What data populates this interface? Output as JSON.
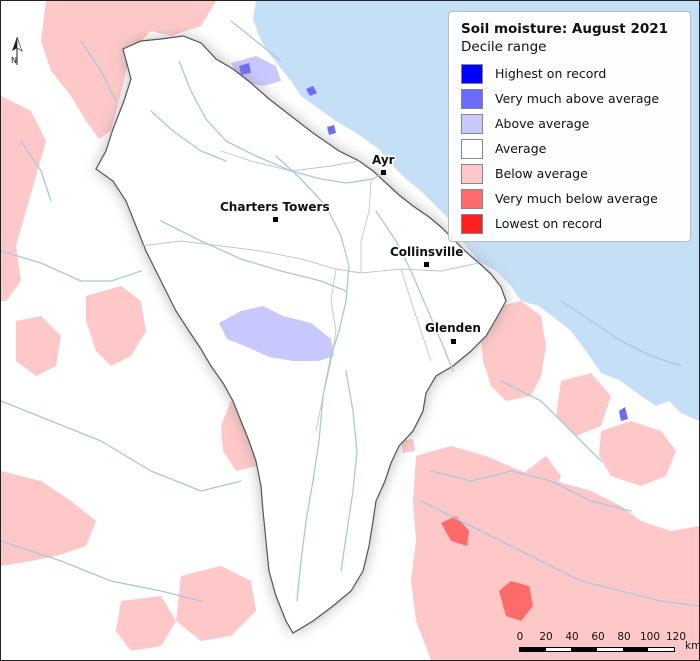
{
  "legend": {
    "title": "Soil moisture: August 2021",
    "subtitle": "Decile range",
    "items": [
      {
        "label": "Highest on record",
        "color": "#0000ff"
      },
      {
        "label": "Very much above average",
        "color": "#6b6bff"
      },
      {
        "label": "Above average",
        "color": "#c8c8ff"
      },
      {
        "label": "Average",
        "color": "#ffffff"
      },
      {
        "label": "Below average",
        "color": "#ffc8c8"
      },
      {
        "label": "Very much below average",
        "color": "#ff6b6b"
      },
      {
        "label": "Lowest on record",
        "color": "#ff1f1f"
      }
    ]
  },
  "towns": [
    {
      "name": "Ayr"
    },
    {
      "name": "Charters Towers"
    },
    {
      "name": "Collinsville"
    },
    {
      "name": "Glenden"
    }
  ],
  "north_arrow": {
    "label": "N",
    "icon": "north-arrow-icon"
  },
  "scale_bar": {
    "ticks": [
      "0",
      "20",
      "40",
      "60",
      "80",
      "100",
      "120"
    ],
    "unit": "km"
  },
  "colors": {
    "sea": "#c5dff6",
    "river": "#a9c7de",
    "basin_outline": "#555555"
  }
}
